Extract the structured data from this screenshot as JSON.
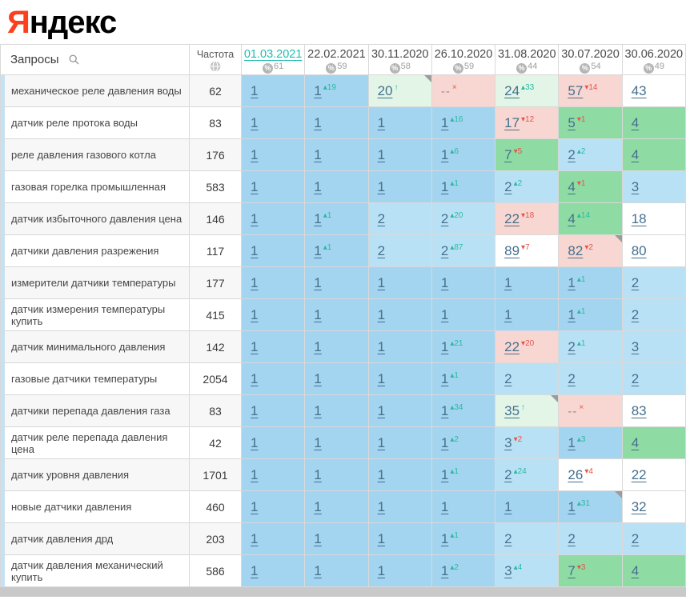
{
  "logo": {
    "ya": "Я",
    "rest": "ндекс"
  },
  "header": {
    "queries_label": "Запросы",
    "frequency_label": "Частота"
  },
  "colors": {
    "logo_red": "#fc3f1d",
    "selected_date": "#1fbdb0",
    "cell_top1": "#a3d4f0",
    "cell_top3": "#b9e1f6",
    "cell_green": "#8edba4",
    "cell_mint": "#e2f5e7",
    "cell_pink": "#f8d6d1",
    "cell_white": "#ffffff",
    "pos_text": "#47708d",
    "change_up": "#2bb9a2",
    "change_down": "#e0584b",
    "row_alt": "#f7f7f7",
    "stripe_blue": "#c5e2f4"
  },
  "columns": [
    {
      "date": "01.03.2021",
      "pct": "61",
      "selected": true
    },
    {
      "date": "22.02.2021",
      "pct": "59"
    },
    {
      "date": "30.11.2020",
      "pct": "58"
    },
    {
      "date": "26.10.2020",
      "pct": "59"
    },
    {
      "date": "31.08.2020",
      "pct": "44"
    },
    {
      "date": "30.07.2020",
      "pct": "54"
    },
    {
      "date": "30.06.2020",
      "pct": "49"
    }
  ],
  "rows": [
    {
      "query": "механическое реле давления воды",
      "frequency": "62",
      "cells": [
        {
          "v": "1",
          "bg": "b1"
        },
        {
          "v": "1",
          "c": "19",
          "d": "up",
          "bg": "b1"
        },
        {
          "v": "20",
          "d": "arr",
          "bg": "m",
          "k": true
        },
        {
          "v": "--",
          "d": "x",
          "bg": "p"
        },
        {
          "v": "24",
          "c": "33",
          "d": "up",
          "bg": "m"
        },
        {
          "v": "57",
          "c": "14",
          "d": "down",
          "bg": "p"
        },
        {
          "v": "43",
          "bg": "w"
        }
      ]
    },
    {
      "query": "датчик реле протока воды",
      "frequency": "83",
      "cells": [
        {
          "v": "1",
          "bg": "b1"
        },
        {
          "v": "1",
          "bg": "b1"
        },
        {
          "v": "1",
          "bg": "b1"
        },
        {
          "v": "1",
          "c": "16",
          "d": "up",
          "bg": "b1"
        },
        {
          "v": "17",
          "c": "12",
          "d": "down",
          "bg": "p"
        },
        {
          "v": "5",
          "c": "1",
          "d": "down",
          "bg": "g"
        },
        {
          "v": "4",
          "bg": "g"
        }
      ]
    },
    {
      "query": "реле давления газового котла",
      "frequency": "176",
      "cells": [
        {
          "v": "1",
          "bg": "b1"
        },
        {
          "v": "1",
          "bg": "b1"
        },
        {
          "v": "1",
          "bg": "b1"
        },
        {
          "v": "1",
          "c": "6",
          "d": "up",
          "bg": "b1"
        },
        {
          "v": "7",
          "c": "5",
          "d": "down",
          "bg": "g"
        },
        {
          "v": "2",
          "c": "2",
          "d": "up",
          "bg": "b2"
        },
        {
          "v": "4",
          "bg": "g"
        }
      ]
    },
    {
      "query": "газовая горелка промышленная",
      "frequency": "583",
      "cells": [
        {
          "v": "1",
          "bg": "b1"
        },
        {
          "v": "1",
          "bg": "b1"
        },
        {
          "v": "1",
          "bg": "b1"
        },
        {
          "v": "1",
          "c": "1",
          "d": "up",
          "bg": "b1"
        },
        {
          "v": "2",
          "c": "2",
          "d": "up",
          "bg": "b2"
        },
        {
          "v": "4",
          "c": "1",
          "d": "down",
          "bg": "g"
        },
        {
          "v": "3",
          "bg": "b2"
        }
      ]
    },
    {
      "query": "датчик избыточного давления цена",
      "frequency": "146",
      "cells": [
        {
          "v": "1",
          "bg": "b1"
        },
        {
          "v": "1",
          "c": "1",
          "d": "up",
          "bg": "b1"
        },
        {
          "v": "2",
          "bg": "b2"
        },
        {
          "v": "2",
          "c": "20",
          "d": "up",
          "bg": "b2"
        },
        {
          "v": "22",
          "c": "18",
          "d": "down",
          "bg": "p"
        },
        {
          "v": "4",
          "c": "14",
          "d": "up",
          "bg": "g"
        },
        {
          "v": "18",
          "bg": "w"
        }
      ]
    },
    {
      "query": "датчики давления разрежения",
      "frequency": "117",
      "cells": [
        {
          "v": "1",
          "bg": "b1"
        },
        {
          "v": "1",
          "c": "1",
          "d": "up",
          "bg": "b1"
        },
        {
          "v": "2",
          "bg": "b2"
        },
        {
          "v": "2",
          "c": "87",
          "d": "up",
          "bg": "b2"
        },
        {
          "v": "89",
          "c": "7",
          "d": "down",
          "bg": "w"
        },
        {
          "v": "82",
          "c": "2",
          "d": "down",
          "bg": "p",
          "k": true
        },
        {
          "v": "80",
          "bg": "w"
        }
      ]
    },
    {
      "query": "измерители датчики температуры",
      "frequency": "177",
      "cells": [
        {
          "v": "1",
          "bg": "b1"
        },
        {
          "v": "1",
          "bg": "b1"
        },
        {
          "v": "1",
          "bg": "b1"
        },
        {
          "v": "1",
          "bg": "b1"
        },
        {
          "v": "1",
          "bg": "b1"
        },
        {
          "v": "1",
          "c": "1",
          "d": "up",
          "bg": "b1"
        },
        {
          "v": "2",
          "bg": "b2"
        }
      ]
    },
    {
      "query": "датчик измерения температуры купить",
      "frequency": "415",
      "cells": [
        {
          "v": "1",
          "bg": "b1"
        },
        {
          "v": "1",
          "bg": "b1"
        },
        {
          "v": "1",
          "bg": "b1"
        },
        {
          "v": "1",
          "bg": "b1"
        },
        {
          "v": "1",
          "bg": "b1"
        },
        {
          "v": "1",
          "c": "1",
          "d": "up",
          "bg": "b1"
        },
        {
          "v": "2",
          "bg": "b2"
        }
      ]
    },
    {
      "query": "датчик минимального давления",
      "frequency": "142",
      "cells": [
        {
          "v": "1",
          "bg": "b1"
        },
        {
          "v": "1",
          "bg": "b1"
        },
        {
          "v": "1",
          "bg": "b1"
        },
        {
          "v": "1",
          "c": "21",
          "d": "up",
          "bg": "b1"
        },
        {
          "v": "22",
          "c": "20",
          "d": "down",
          "bg": "p"
        },
        {
          "v": "2",
          "c": "1",
          "d": "up",
          "bg": "b2"
        },
        {
          "v": "3",
          "bg": "b2"
        }
      ]
    },
    {
      "query": "газовые датчики температуры",
      "frequency": "2054",
      "cells": [
        {
          "v": "1",
          "bg": "b1"
        },
        {
          "v": "1",
          "bg": "b1"
        },
        {
          "v": "1",
          "bg": "b1"
        },
        {
          "v": "1",
          "c": "1",
          "d": "up",
          "bg": "b1"
        },
        {
          "v": "2",
          "bg": "b2"
        },
        {
          "v": "2",
          "bg": "b2"
        },
        {
          "v": "2",
          "bg": "b2"
        }
      ]
    },
    {
      "query": "датчики перепада давления газа",
      "frequency": "83",
      "cells": [
        {
          "v": "1",
          "bg": "b1"
        },
        {
          "v": "1",
          "bg": "b1"
        },
        {
          "v": "1",
          "bg": "b1"
        },
        {
          "v": "1",
          "c": "34",
          "d": "up",
          "bg": "b1"
        },
        {
          "v": "35",
          "d": "arr",
          "bg": "m",
          "k": true
        },
        {
          "v": "--",
          "d": "x",
          "bg": "p"
        },
        {
          "v": "83",
          "bg": "w"
        }
      ]
    },
    {
      "query": "датчик реле перепада давления цена",
      "frequency": "42",
      "cells": [
        {
          "v": "1",
          "bg": "b1"
        },
        {
          "v": "1",
          "bg": "b1"
        },
        {
          "v": "1",
          "bg": "b1"
        },
        {
          "v": "1",
          "c": "2",
          "d": "up",
          "bg": "b1"
        },
        {
          "v": "3",
          "c": "2",
          "d": "down",
          "bg": "b2"
        },
        {
          "v": "1",
          "c": "3",
          "d": "up",
          "bg": "b1"
        },
        {
          "v": "4",
          "bg": "g"
        }
      ]
    },
    {
      "query": "датчик уровня давления",
      "frequency": "1701",
      "cells": [
        {
          "v": "1",
          "bg": "b1"
        },
        {
          "v": "1",
          "bg": "b1"
        },
        {
          "v": "1",
          "bg": "b1"
        },
        {
          "v": "1",
          "c": "1",
          "d": "up",
          "bg": "b1"
        },
        {
          "v": "2",
          "c": "24",
          "d": "up",
          "bg": "b2"
        },
        {
          "v": "26",
          "c": "4",
          "d": "down",
          "bg": "w"
        },
        {
          "v": "22",
          "bg": "w"
        }
      ]
    },
    {
      "query": "новые датчики давления",
      "frequency": "460",
      "cells": [
        {
          "v": "1",
          "bg": "b1"
        },
        {
          "v": "1",
          "bg": "b1"
        },
        {
          "v": "1",
          "bg": "b1"
        },
        {
          "v": "1",
          "bg": "b1"
        },
        {
          "v": "1",
          "bg": "b1"
        },
        {
          "v": "1",
          "c": "31",
          "d": "up",
          "bg": "b1",
          "k": true
        },
        {
          "v": "32",
          "bg": "w"
        }
      ]
    },
    {
      "query": "датчик давления дрд",
      "frequency": "203",
      "cells": [
        {
          "v": "1",
          "bg": "b1"
        },
        {
          "v": "1",
          "bg": "b1"
        },
        {
          "v": "1",
          "bg": "b1"
        },
        {
          "v": "1",
          "c": "1",
          "d": "up",
          "bg": "b1"
        },
        {
          "v": "2",
          "bg": "b2"
        },
        {
          "v": "2",
          "bg": "b2"
        },
        {
          "v": "2",
          "bg": "b2"
        }
      ]
    },
    {
      "query": "датчик давления механический купить",
      "frequency": "586",
      "cells": [
        {
          "v": "1",
          "bg": "b1"
        },
        {
          "v": "1",
          "bg": "b1"
        },
        {
          "v": "1",
          "bg": "b1"
        },
        {
          "v": "1",
          "c": "2",
          "d": "up",
          "bg": "b1"
        },
        {
          "v": "3",
          "c": "4",
          "d": "up",
          "bg": "b2"
        },
        {
          "v": "7",
          "c": "3",
          "d": "down",
          "bg": "g"
        },
        {
          "v": "4",
          "bg": "g"
        }
      ]
    }
  ]
}
